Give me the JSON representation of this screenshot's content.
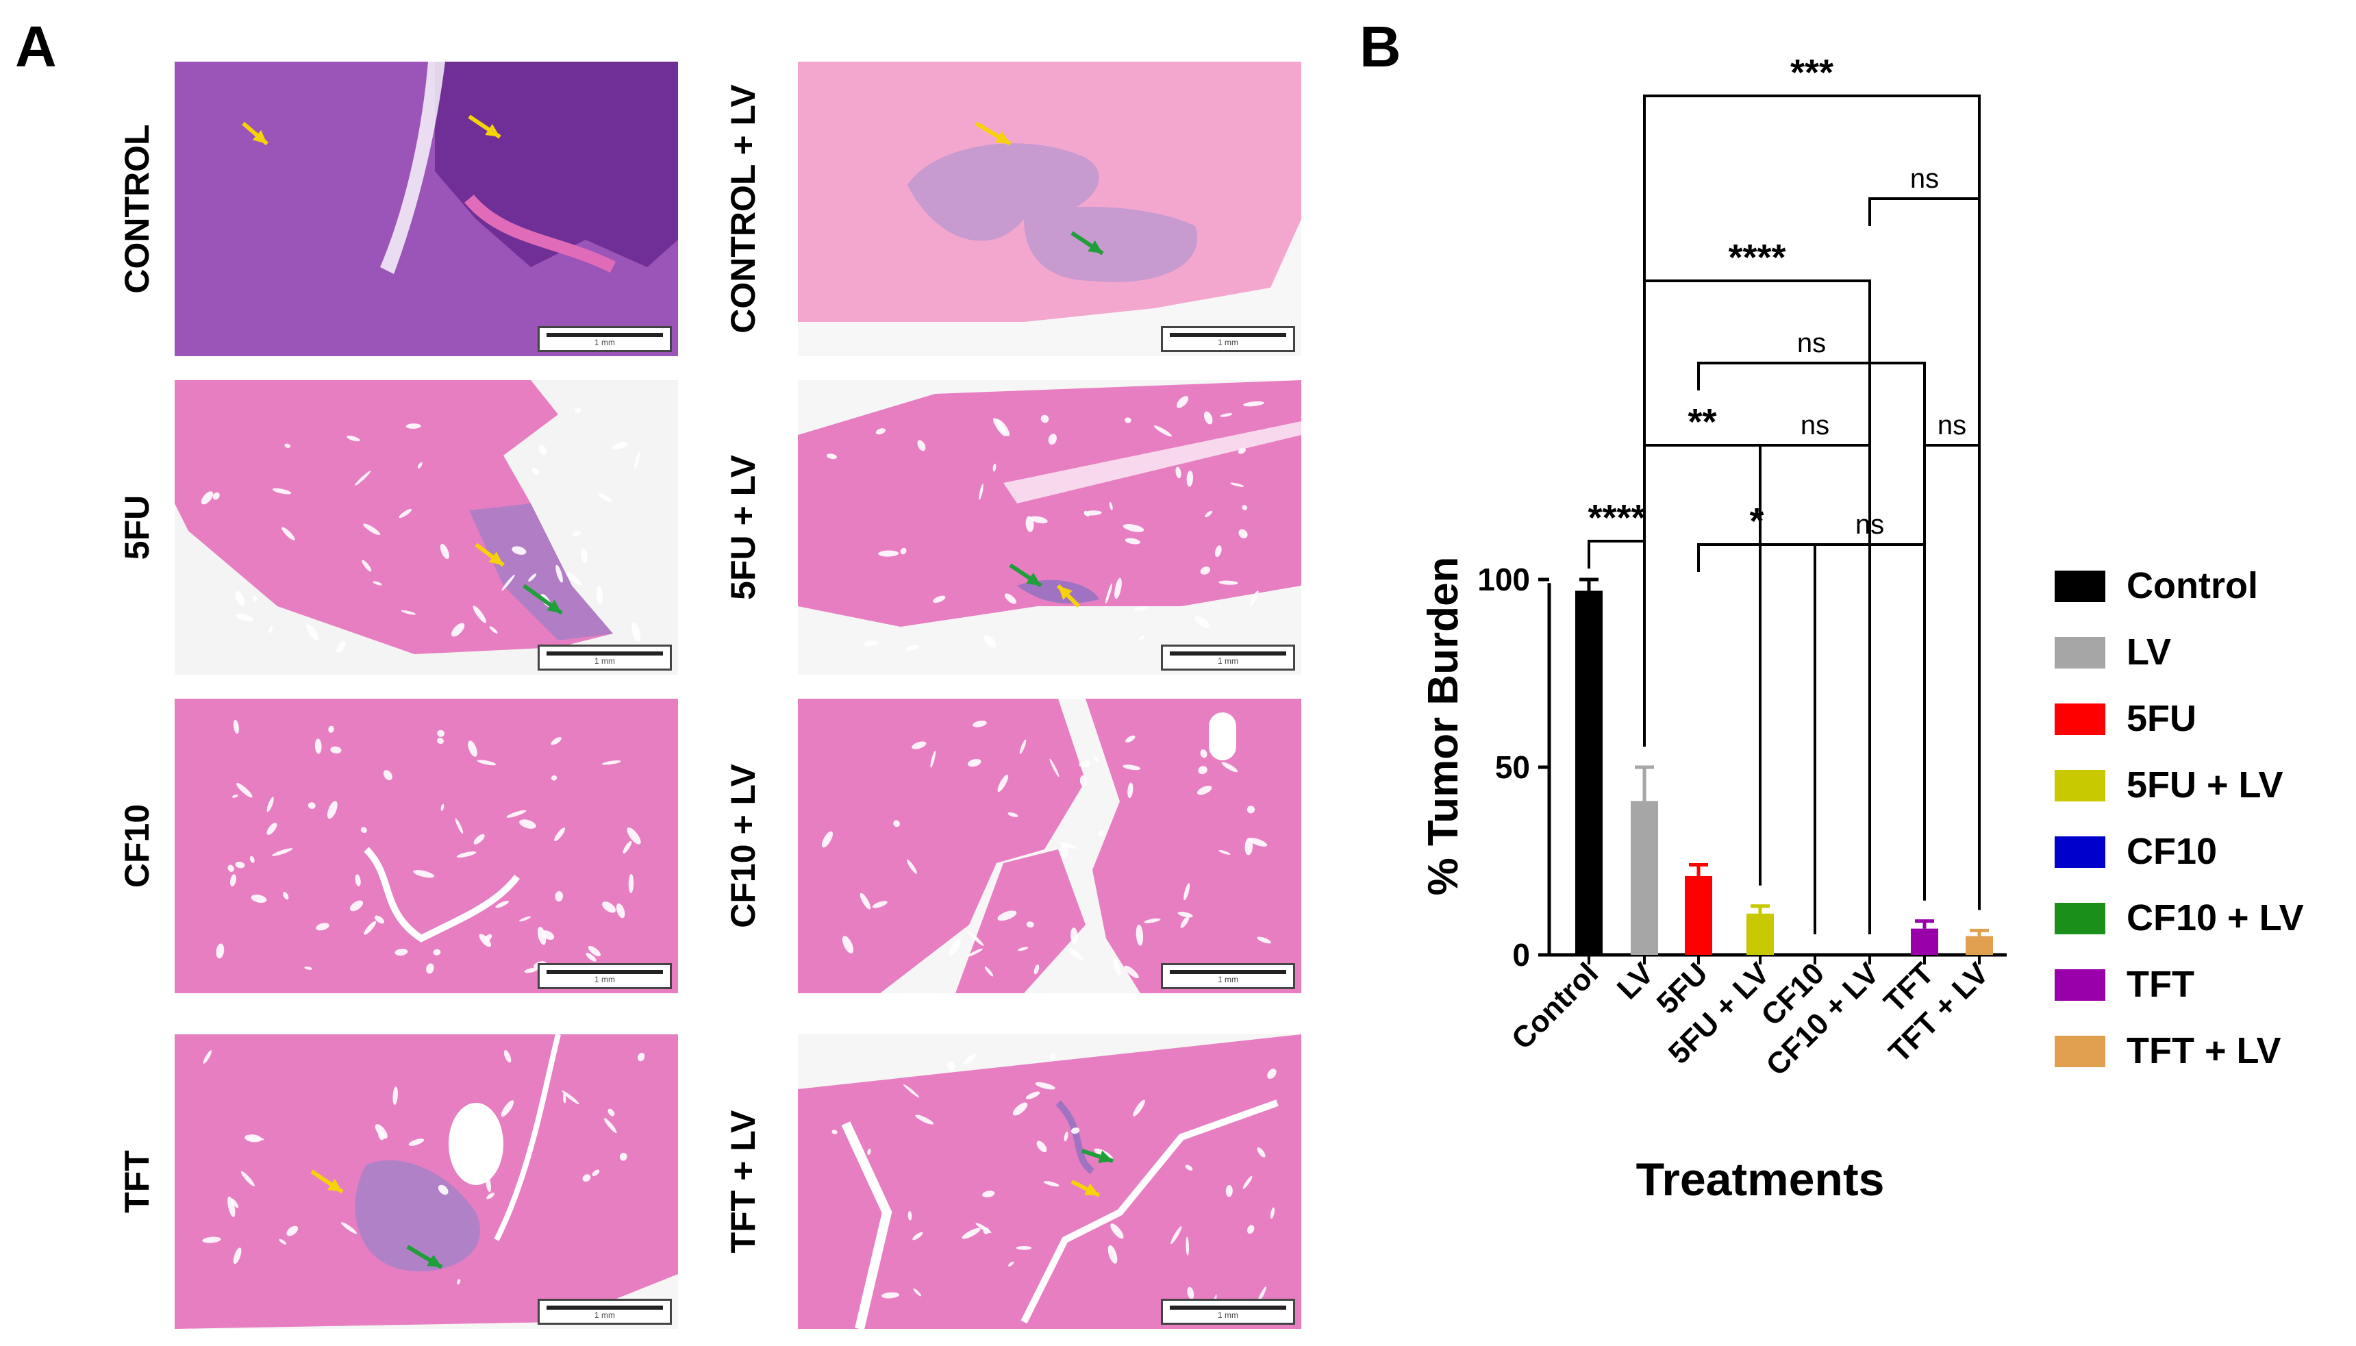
{
  "panel_a": {
    "letter": "A",
    "tiles": [
      {
        "label": "CONTROL",
        "tissue": "tumor-heavy",
        "scale": "1 mm"
      },
      {
        "label": "CONTROL + LV",
        "tissue": "liver-nodules",
        "scale": "1 mm"
      },
      {
        "label": "5FU",
        "tissue": "liver-wedge",
        "scale": "1 mm"
      },
      {
        "label": "5FU + LV",
        "tissue": "liver-band",
        "scale": "1 mm"
      },
      {
        "label": "CF10",
        "tissue": "liver-clean",
        "scale": "1 mm"
      },
      {
        "label": "CF10 + LV",
        "tissue": "liver-fragments",
        "scale": "1 mm"
      },
      {
        "label": "TFT",
        "tissue": "liver-lesion",
        "scale": "1 mm"
      },
      {
        "label": "TFT + LV",
        "tissue": "liver-cracked",
        "scale": "1 mm"
      }
    ],
    "colors": {
      "he_pink": "#e06bb8",
      "tumor_purple": "#8a4fb0",
      "arrow_yellow": "#f5d20a",
      "arrow_green": "#1f9e3a"
    }
  },
  "panel_b": {
    "letter": "B",
    "legend": [
      {
        "label": "Control",
        "color": "#000000"
      },
      {
        "label": "LV",
        "color": "#a6a6a6"
      },
      {
        "label": "5FU",
        "color": "#ff0000"
      },
      {
        "label": "5FU + LV",
        "color": "#c8c800"
      },
      {
        "label": "CF10",
        "color": "#0000cc"
      },
      {
        "label": "CF10 + LV",
        "color": "#1a8f1a"
      },
      {
        "label": "TFT",
        "color": "#9900aa"
      },
      {
        "label": "TFT + LV",
        "color": "#e0a050"
      }
    ]
  },
  "chart_data": {
    "type": "bar",
    "xlabel": "Treatments",
    "ylabel": "% Tumor Burden",
    "ylim": [
      0,
      110
    ],
    "yticks": [
      "0",
      "50",
      "100"
    ],
    "categories": [
      "Control",
      "LV",
      "5FU",
      "5FU + LV",
      "CF10",
      "CF10 + LV",
      "TFT",
      "TFT + LV"
    ],
    "values": [
      97,
      41,
      21,
      11,
      0,
      0,
      7,
      5
    ],
    "errors": [
      3,
      9,
      3,
      2,
      0,
      0,
      2,
      1.5
    ],
    "colors": [
      "#000000",
      "#a6a6a6",
      "#ff0000",
      "#c8c800",
      "#0000cc",
      "#1a8f1a",
      "#9900aa",
      "#e0a050"
    ],
    "significance": [
      {
        "from": "LV",
        "to": "TFT + LV",
        "label": "***"
      },
      {
        "from": "CF10 + LV",
        "to": "TFT + LV",
        "label": "ns"
      },
      {
        "from": "LV",
        "to": "CF10 + LV",
        "label": "****"
      },
      {
        "from": "5FU",
        "to": "TFT",
        "label": "ns"
      },
      {
        "from": "LV",
        "to": "5FU + LV",
        "label": "**"
      },
      {
        "from": "5FU + LV",
        "to": "CF10 + LV",
        "label": "ns"
      },
      {
        "from": "TFT",
        "to": "TFT + LV",
        "label": "ns"
      },
      {
        "from": "Control",
        "to": "LV",
        "label": "****"
      },
      {
        "from": "5FU",
        "to": "CF10",
        "label": "*"
      },
      {
        "from": "CF10",
        "to": "TFT",
        "label": "ns"
      }
    ]
  }
}
